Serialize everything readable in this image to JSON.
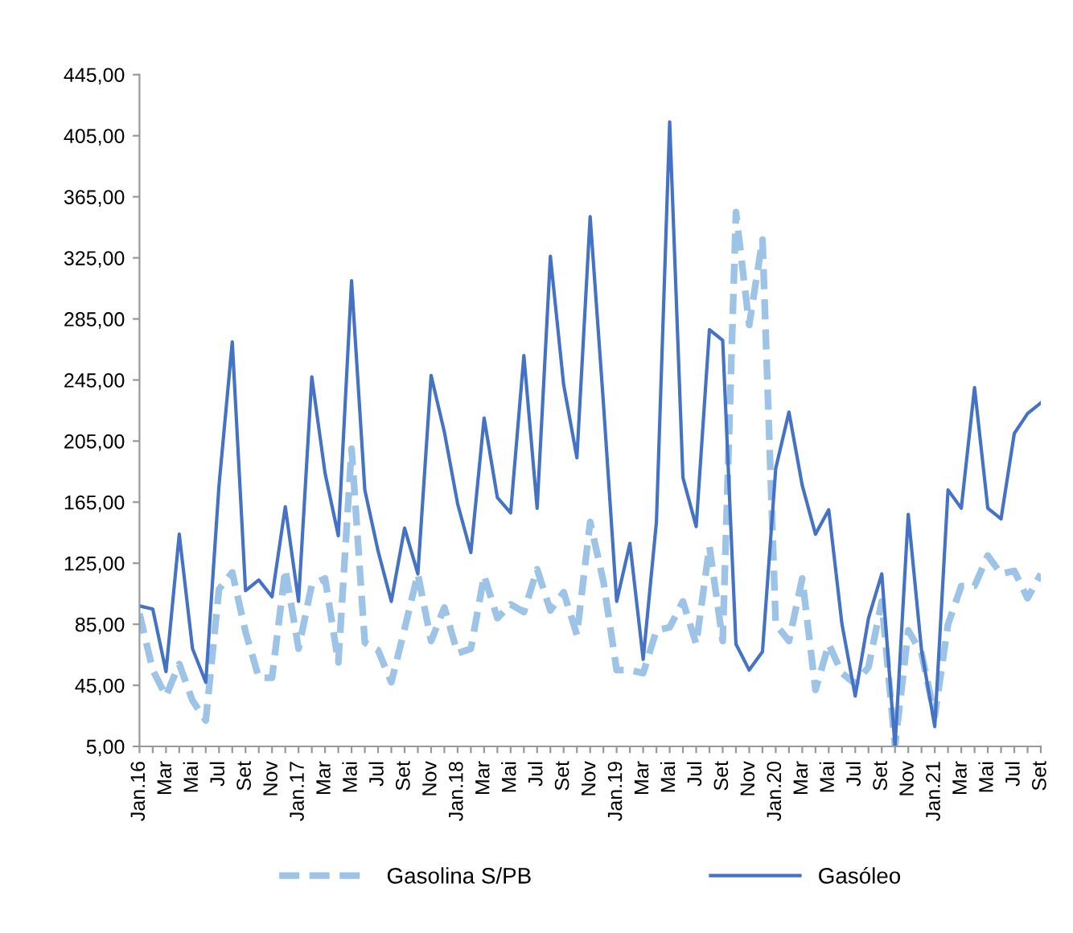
{
  "chart_data": {
    "type": "line",
    "categories": [
      "Jan.16",
      null,
      "Mar",
      null,
      "Mai",
      null,
      "Jul",
      null,
      "Set",
      null,
      "Nov",
      null,
      "Jan.17",
      null,
      "Mar",
      null,
      "Mai",
      null,
      "Jul",
      null,
      "Set",
      null,
      "Nov",
      null,
      "Jan.18",
      null,
      "Mar",
      null,
      "Mai",
      null,
      "Jul",
      null,
      "Set",
      null,
      "Nov",
      null,
      "Jan.19",
      null,
      "Mar",
      null,
      "Mai",
      null,
      "Jul",
      null,
      "Set",
      null,
      "Nov",
      null,
      "Jan.20",
      null,
      "Mar",
      null,
      "Mai",
      null,
      "Jul",
      null,
      "Set",
      null,
      "Nov",
      null,
      "Jan.21",
      null,
      "Mar",
      null,
      "Mai",
      null,
      "Jul",
      null,
      "Set"
    ],
    "series": [
      {
        "name": "Gasolina S/PB",
        "color": "#9dc3e6",
        "line_style": "dashed",
        "values": [
          92,
          55,
          38,
          59,
          35,
          22,
          108,
          119,
          80,
          50,
          50,
          121,
          69,
          111,
          115,
          60,
          200,
          73,
          68,
          47,
          82,
          118,
          74,
          96,
          66,
          69,
          117,
          89,
          98,
          93,
          121,
          94,
          106,
          78,
          152,
          113,
          55,
          55,
          53,
          81,
          83,
          100,
          72,
          136,
          74,
          355,
          281,
          337,
          85,
          74,
          115,
          42,
          72,
          53,
          46,
          57,
          100,
          5,
          81,
          66,
          25,
          85,
          110,
          110,
          130,
          118,
          120,
          102,
          118
        ]
      },
      {
        "name": "Gasóleo",
        "color": "#4472c4",
        "line_style": "solid",
        "values": [
          97,
          95,
          54,
          144,
          69,
          47,
          176,
          270,
          107,
          114,
          103,
          162,
          100,
          247,
          184,
          143,
          310,
          173,
          133,
          100,
          148,
          118,
          248,
          211,
          164,
          132,
          220,
          168,
          158,
          261,
          161,
          326,
          242,
          194,
          352,
          230,
          100,
          138,
          62,
          152,
          414,
          181,
          149,
          278,
          271,
          72,
          55,
          67,
          187,
          224,
          176,
          144,
          160,
          85,
          38,
          89,
          118,
          5,
          157,
          68,
          18,
          173,
          161,
          240,
          161,
          154,
          210,
          223,
          230
        ]
      }
    ],
    "ylim": [
      5,
      445
    ],
    "yticks": [
      {
        "value": 5,
        "label": "5,00"
      },
      {
        "value": 45,
        "label": "45,00"
      },
      {
        "value": 85,
        "label": "85,00"
      },
      {
        "value": 125,
        "label": "125,00"
      },
      {
        "value": 165,
        "label": "165,00"
      },
      {
        "value": 205,
        "label": "205,00"
      },
      {
        "value": 245,
        "label": "245,00"
      },
      {
        "value": 285,
        "label": "285,00"
      },
      {
        "value": 325,
        "label": "325,00"
      },
      {
        "value": 365,
        "label": "365,00"
      },
      {
        "value": 405,
        "label": "405,00"
      },
      {
        "value": 445,
        "label": "445,00"
      }
    ],
    "grid": false,
    "legend": "bottom"
  }
}
